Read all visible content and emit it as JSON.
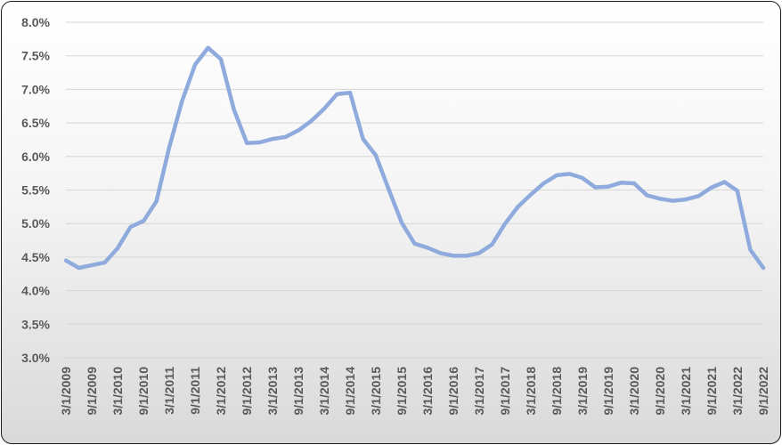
{
  "chart_data": {
    "type": "line",
    "title": "",
    "xlabel": "",
    "ylabel": "",
    "ylim": [
      3.0,
      8.0
    ],
    "grid": true,
    "legend": "none",
    "line_color": "#8faadc",
    "ytick_values": [
      3.0,
      3.5,
      4.0,
      4.5,
      5.0,
      5.5,
      6.0,
      6.5,
      7.0,
      7.5,
      8.0
    ],
    "yticks": [
      "3.0%",
      "3.5%",
      "4.0%",
      "4.5%",
      "5.0%",
      "5.5%",
      "6.0%",
      "6.5%",
      "7.0%",
      "7.5%",
      "8.0%"
    ],
    "xtick_labels": [
      "3/1/2009",
      "9/1/2009",
      "3/1/2010",
      "9/1/2010",
      "3/1/2011",
      "9/1/2011",
      "3/1/2012",
      "9/1/2012",
      "3/1/2013",
      "9/1/2013",
      "3/1/2014",
      "9/1/2014",
      "3/1/2015",
      "9/1/2015",
      "3/1/2016",
      "9/1/2016",
      "3/1/2017",
      "9/1/2017",
      "3/1/2018",
      "9/1/2018",
      "3/1/2019",
      "9/1/2019",
      "3/1/2020",
      "9/1/2020",
      "3/1/2021",
      "9/1/2021",
      "3/1/2022",
      "9/1/2022"
    ],
    "x": [
      "3/1/2009",
      "6/1/2009",
      "9/1/2009",
      "12/1/2009",
      "3/1/2010",
      "6/1/2010",
      "9/1/2010",
      "12/1/2010",
      "3/1/2011",
      "6/1/2011",
      "9/1/2011",
      "12/1/2011",
      "3/1/2012",
      "6/1/2012",
      "9/1/2012",
      "12/1/2012",
      "3/1/2013",
      "6/1/2013",
      "9/1/2013",
      "12/1/2013",
      "3/1/2014",
      "6/1/2014",
      "9/1/2014",
      "12/1/2014",
      "3/1/2015",
      "6/1/2015",
      "9/1/2015",
      "12/1/2015",
      "3/1/2016",
      "6/1/2016",
      "9/1/2016",
      "12/1/2016",
      "3/1/2017",
      "6/1/2017",
      "9/1/2017",
      "12/1/2017",
      "3/1/2018",
      "6/1/2018",
      "9/1/2018",
      "12/1/2018",
      "3/1/2019",
      "6/1/2019",
      "9/1/2019",
      "12/1/2019",
      "3/1/2020",
      "6/1/2020",
      "9/1/2020",
      "12/1/2020",
      "3/1/2021",
      "6/1/2021",
      "9/1/2021",
      "12/1/2021",
      "3/1/2022",
      "6/1/2022",
      "9/1/2022"
    ],
    "series": [
      {
        "values": [
          4.45,
          4.34,
          4.38,
          4.42,
          4.63,
          4.95,
          5.04,
          5.33,
          6.13,
          6.83,
          7.37,
          7.62,
          7.45,
          6.7,
          6.2,
          6.21,
          6.26,
          6.29,
          6.39,
          6.53,
          6.71,
          6.93,
          6.95,
          6.26,
          6.02,
          5.51,
          5.01,
          4.7,
          4.64,
          4.56,
          4.52,
          4.52,
          4.56,
          4.69,
          5.0,
          5.25,
          5.43,
          5.6,
          5.72,
          5.74,
          5.68,
          5.54,
          5.55,
          5.61,
          5.6,
          5.42,
          5.37,
          5.34,
          5.36,
          5.41,
          5.54,
          5.62,
          5.49,
          4.61,
          4.34
        ]
      }
    ]
  }
}
